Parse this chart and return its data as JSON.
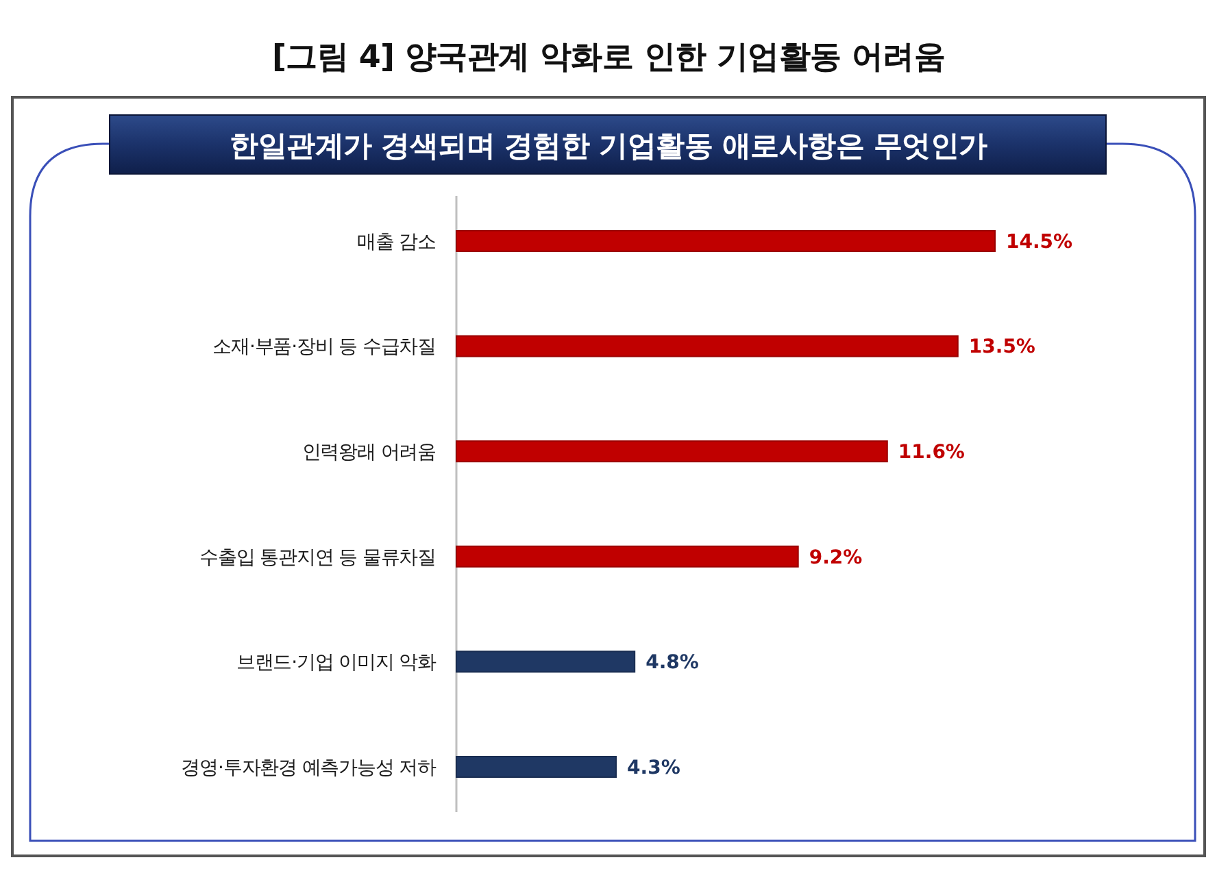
{
  "chart_data": {
    "type": "bar",
    "orientation": "horizontal",
    "title": "[그림 4] 양국관계 악화로 인한 기업활동 어려움",
    "subtitle": "한일관계가 경색되며 경험한 기업활동 애로사항은 무엇인가",
    "categories": [
      "매출 감소",
      "소재·부품·장비 등 수급차질",
      "인력왕래 어려움",
      "수출입 통관지연 등 물류차질",
      "브랜드·기업 이미지 악화",
      "경영·투자환경 예측가능성 저하"
    ],
    "values": [
      14.5,
      13.5,
      11.6,
      9.2,
      4.8,
      4.3
    ],
    "colors": [
      "#c00000",
      "#c00000",
      "#c00000",
      "#c00000",
      "#1f3864",
      "#1f3864"
    ],
    "value_labels": [
      "14.5%",
      "13.5%",
      "11.6%",
      "9.2%",
      "4.8%",
      "4.3%"
    ],
    "tick_labels": "y"
  }
}
